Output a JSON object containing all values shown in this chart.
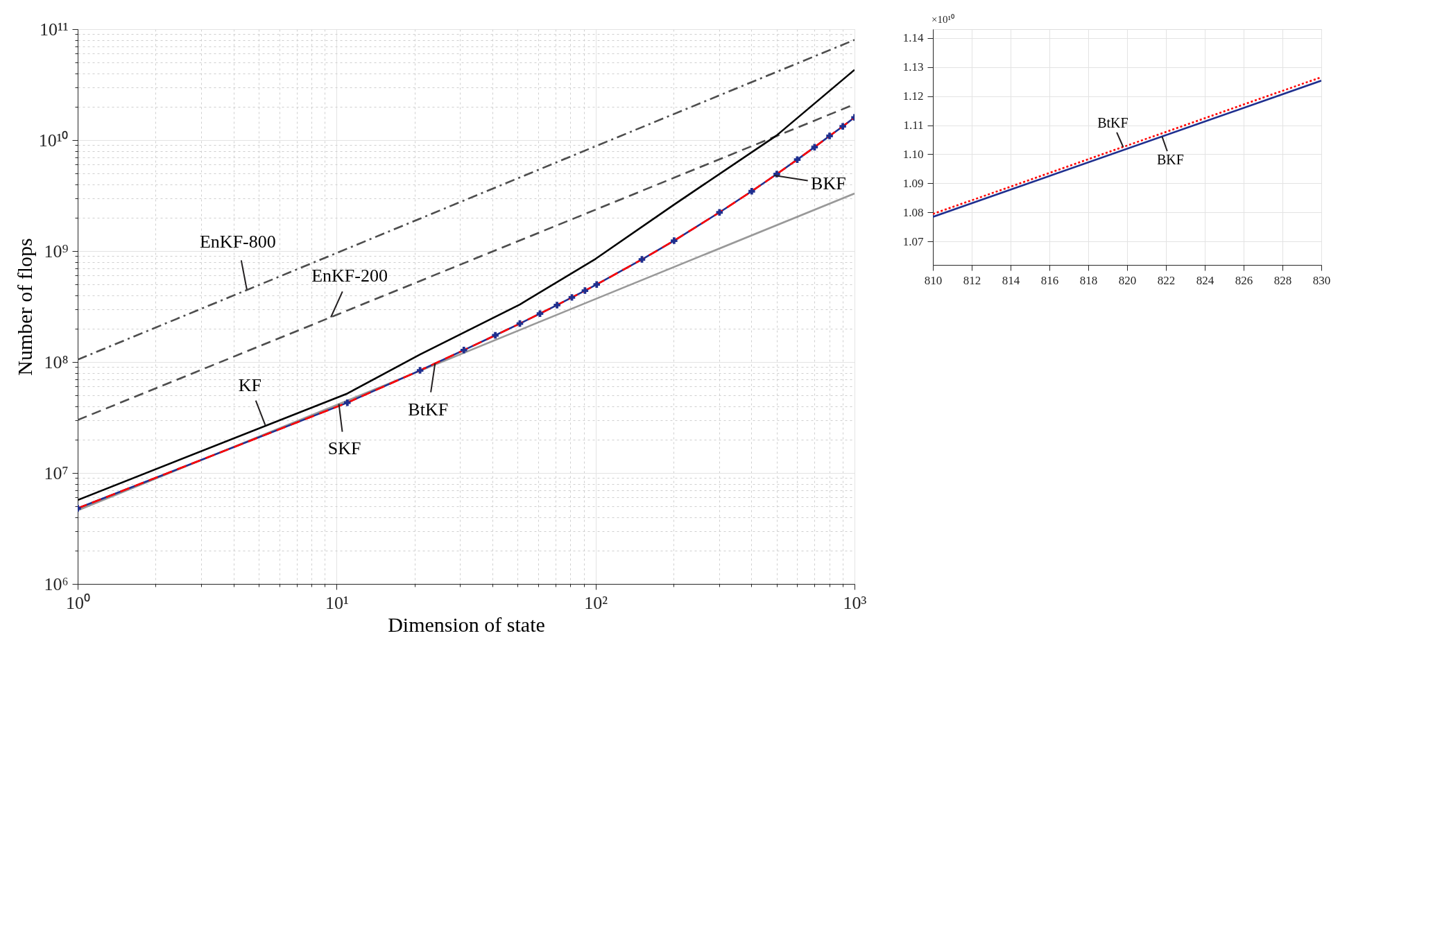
{
  "chart_data": [
    {
      "type": "line",
      "xlabel": "Dimension of state",
      "ylabel": "Number of flops",
      "log": "xy",
      "grid": true,
      "xlim": [
        1,
        1000
      ],
      "ylim": [
        1000000,
        100000000000
      ],
      "xticks": [
        {
          "value": 1,
          "label": "10⁰"
        },
        {
          "value": 2,
          "label": null
        },
        {
          "value": 3,
          "label": null
        },
        {
          "value": 4,
          "label": null
        },
        {
          "value": 5,
          "label": null
        },
        {
          "value": 6,
          "label": null
        },
        {
          "value": 7,
          "label": null
        },
        {
          "value": 8,
          "label": null
        },
        {
          "value": 9,
          "label": null
        },
        {
          "value": 10,
          "label": "10¹"
        },
        {
          "value": 20,
          "label": null
        },
        {
          "value": 30,
          "label": null
        },
        {
          "value": 40,
          "label": null
        },
        {
          "value": 50,
          "label": null
        },
        {
          "value": 60,
          "label": null
        },
        {
          "value": 70,
          "label": null
        },
        {
          "value": 80,
          "label": null
        },
        {
          "value": 90,
          "label": null
        },
        {
          "value": 100,
          "label": "10²"
        },
        {
          "value": 200,
          "label": null
        },
        {
          "value": 300,
          "label": null
        },
        {
          "value": 400,
          "label": null
        },
        {
          "value": 500,
          "label": null
        },
        {
          "value": 600,
          "label": null
        },
        {
          "value": 700,
          "label": null
        },
        {
          "value": 800,
          "label": null
        },
        {
          "value": 900,
          "label": null
        },
        {
          "value": 1000,
          "label": "10³"
        }
      ],
      "yticks": [
        {
          "value": 1000000,
          "label": "10⁶"
        },
        {
          "value": 2000000,
          "label": null
        },
        {
          "value": 3000000,
          "label": null
        },
        {
          "value": 4000000,
          "label": null
        },
        {
          "value": 5000000,
          "label": null
        },
        {
          "value": 6000000,
          "label": null
        },
        {
          "value": 7000000,
          "label": null
        },
        {
          "value": 8000000,
          "label": null
        },
        {
          "value": 9000000,
          "label": null
        },
        {
          "value": 10000000,
          "label": "10⁷"
        },
        {
          "value": 20000000,
          "label": null
        },
        {
          "value": 30000000,
          "label": null
        },
        {
          "value": 40000000,
          "label": null
        },
        {
          "value": 50000000,
          "label": null
        },
        {
          "value": 60000000,
          "label": null
        },
        {
          "value": 70000000,
          "label": null
        },
        {
          "value": 80000000,
          "label": null
        },
        {
          "value": 90000000,
          "label": null
        },
        {
          "value": 100000000,
          "label": "10⁸"
        },
        {
          "value": 200000000,
          "label": null
        },
        {
          "value": 300000000,
          "label": null
        },
        {
          "value": 400000000,
          "label": null
        },
        {
          "value": 500000000,
          "label": null
        },
        {
          "value": 600000000,
          "label": null
        },
        {
          "value": 700000000,
          "label": null
        },
        {
          "value": 800000000,
          "label": null
        },
        {
          "value": 900000000,
          "label": null
        },
        {
          "value": 1000000000,
          "label": "10⁹"
        },
        {
          "value": 2000000000,
          "label": null
        },
        {
          "value": 3000000000,
          "label": null
        },
        {
          "value": 4000000000,
          "label": null
        },
        {
          "value": 5000000000,
          "label": null
        },
        {
          "value": 6000000000,
          "label": null
        },
        {
          "value": 7000000000,
          "label": null
        },
        {
          "value": 8000000000,
          "label": null
        },
        {
          "value": 9000000000,
          "label": null
        },
        {
          "value": 10000000000,
          "label": "10¹⁰"
        },
        {
          "value": 20000000000,
          "label": null
        },
        {
          "value": 30000000000,
          "label": null
        },
        {
          "value": 40000000000,
          "label": null
        },
        {
          "value": 50000000000,
          "label": null
        },
        {
          "value": 60000000000,
          "label": null
        },
        {
          "value": 70000000000,
          "label": null
        },
        {
          "value": 80000000000,
          "label": null
        },
        {
          "value": 90000000000,
          "label": null
        },
        {
          "value": 100000000000,
          "label": "10¹¹"
        }
      ],
      "series": [
        {
          "color": "#4d4d4d",
          "line_style": "dashdot",
          "x": [
            1,
            10,
            100,
            1000
          ],
          "values": [
            105000000,
            960000000,
            8800000000,
            80000000000
          ]
        },
        {
          "color": "#4d4d4d",
          "line_style": "dashed",
          "x": [
            1,
            10,
            100,
            1000
          ],
          "values": [
            30000000,
            266000000,
            2360000000,
            21000000000
          ]
        },
        {
          "color": "#000000",
          "line_style": "solid",
          "x": [
            1,
            11,
            21,
            51,
            100,
            200,
            500,
            1000
          ],
          "values": [
            5700000,
            52000000,
            117000000,
            330000000,
            850000000,
            2600000000,
            11000000000,
            43000000000
          ]
        },
        {
          "color": "#999999",
          "line_style": "solid",
          "x": [
            1,
            10,
            100,
            1000
          ],
          "values": [
            4600000,
            41000000,
            370000000,
            3300000000
          ]
        },
        {
          "color": "#1f2f8f",
          "line_style": "solid",
          "marker": "cross",
          "x": [
            1,
            11,
            21,
            31,
            41,
            51,
            61,
            71,
            81,
            91,
            101,
            151,
            201,
            301,
            401,
            501,
            601,
            701,
            801,
            901,
            1000
          ],
          "values": [
            4800000,
            43000000,
            84000000,
            128000000,
            174000000,
            222000000,
            273000000,
            326000000,
            382000000,
            440000000,
            500000000,
            840000000,
            1240000000,
            2230000000,
            3460000000,
            4940000000,
            6670000000,
            8640000000,
            10900000000,
            13300000000,
            16000000000
          ]
        },
        {
          "color": "#ff0000",
          "line_style": "dashed",
          "x": [
            1,
            11,
            21,
            31,
            41,
            51,
            61,
            71,
            81,
            91,
            101,
            151,
            201,
            301,
            401,
            501,
            601,
            701,
            801,
            901,
            1000
          ],
          "values": [
            4800000,
            43000000,
            84000000,
            128000000,
            174000000,
            222000000,
            273000000,
            326000000,
            382000000,
            440000000,
            500000000,
            840000000,
            1240000000,
            2230000000,
            3460000000,
            4940000000,
            6670000000,
            8640000000,
            10900000000,
            13300000000,
            16000000000
          ]
        }
      ],
      "annotations": [
        {
          "text": "EnKF-800",
          "x": 4.5,
          "y": 450000000
        },
        {
          "text": "EnKF-200",
          "x": 9.5,
          "y": 253000000
        },
        {
          "text": "KF",
          "x": 5.3,
          "y": 27000000
        },
        {
          "text": "SKF",
          "x": 10.2,
          "y": 42000000
        },
        {
          "text": "BtKF",
          "x": 24,
          "y": 97000000
        },
        {
          "text": "BKF",
          "x": 490,
          "y": 4800000000
        }
      ]
    },
    {
      "type": "line",
      "grid": true,
      "xlim": [
        810,
        830
      ],
      "ylim": [
        1.062,
        1.143
      ],
      "xticks": [
        810,
        812,
        814,
        816,
        818,
        820,
        822,
        824,
        826,
        828,
        830
      ],
      "yticks": [
        1.07,
        1.08,
        1.09,
        {
          "value": 1.1,
          "label": "1.10"
        },
        1.11,
        1.12,
        1.13,
        1.14
      ],
      "series": [
        {
          "color": "#1f2f8f",
          "line_style": "solid",
          "x": [
            810,
            830
          ],
          "values": [
            1.0785,
            1.1253
          ]
        },
        {
          "color": "#ff0000",
          "line_style": "dotted",
          "x": [
            810,
            830
          ],
          "values": [
            1.0795,
            1.1265
          ]
        }
      ],
      "annotations": [
        "×10¹⁰",
        {
          "text": "BtKF",
          "x": 819.8,
          "y": 1.1025
        },
        {
          "text": "BKF",
          "x": 821.8,
          "y": 1.1061
        }
      ]
    }
  ]
}
